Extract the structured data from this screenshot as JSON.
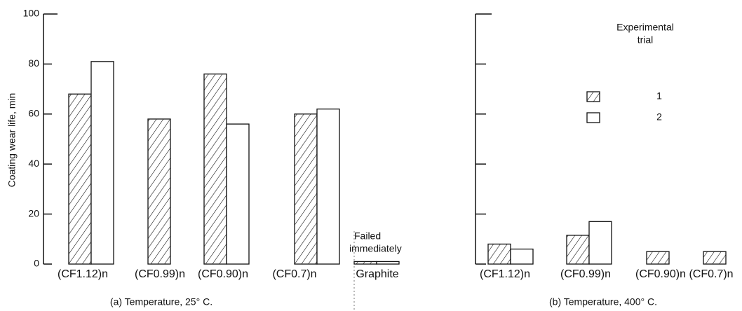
{
  "chart_data": [
    {
      "type": "bar",
      "subtitle": "(a) Temperature, 25° C.",
      "ylabel": "Coating wear life, min",
      "categories": [
        "(CF1.12)n",
        "(CF0.99)n",
        "(CF0.90)n",
        "(CF0.7)n",
        "Graphite"
      ],
      "series": [
        {
          "fill": "hatch",
          "values": [
            68,
            58,
            76,
            60,
            1
          ]
        },
        {
          "fill": "none",
          "values": [
            81,
            null,
            56,
            62,
            1
          ]
        }
      ],
      "ylim": [
        0,
        100
      ],
      "yticks": [
        0,
        20,
        40,
        60,
        80,
        100
      ],
      "annotation_lines": [
        "Failed",
        "immediately"
      ]
    },
    {
      "type": "bar",
      "subtitle": "(b) Temperature, 400° C.",
      "categories": [
        "(CF1.12)n",
        "(CF0.99)n",
        "(CF0.90)n",
        "(CF0.7)n"
      ],
      "series": [
        {
          "name": "1",
          "fill": "hatch",
          "values": [
            8,
            11.5,
            5,
            5
          ]
        },
        {
          "name": "2",
          "fill": "none",
          "values": [
            6,
            17,
            null,
            null
          ]
        }
      ],
      "ylim": [
        0,
        100
      ],
      "yticks": [
        0,
        20,
        40,
        60,
        80,
        100
      ],
      "show_ytick_labels": false,
      "legend_title_lines": [
        "Experimental",
        "trial"
      ]
    }
  ]
}
